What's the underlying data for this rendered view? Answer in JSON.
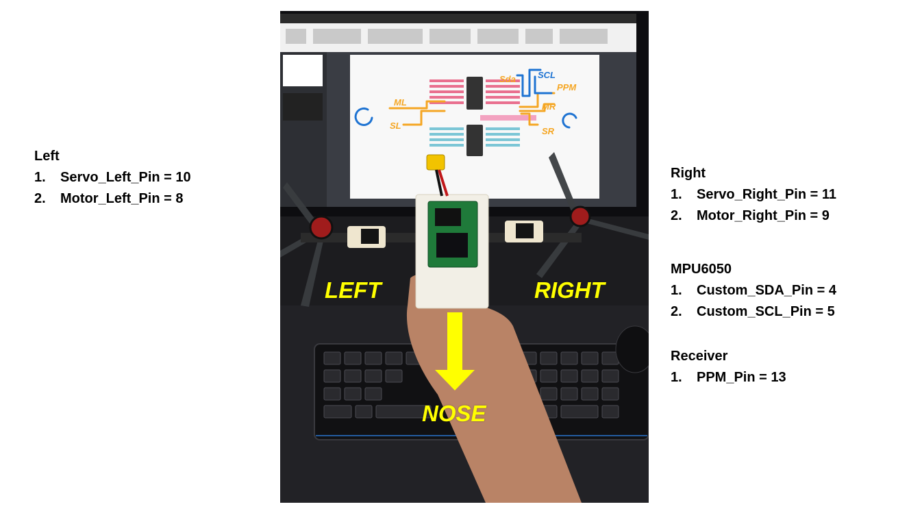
{
  "left": {
    "title": "Left",
    "items": [
      {
        "num": "1.",
        "text": "Servo_Left_Pin = 10"
      },
      {
        "num": "2.",
        "text": "Motor_Left_Pin = 8"
      }
    ]
  },
  "right": {
    "title": "Right",
    "items": [
      {
        "num": "1.",
        "text": "Servo_Right_Pin = 11"
      },
      {
        "num": "2.",
        "text": "Motor_Right_Pin = 9"
      }
    ]
  },
  "mpu": {
    "title": "MPU6050",
    "items": [
      {
        "num": "1.",
        "text": "Custom_SDA_Pin = 4"
      },
      {
        "num": "2.",
        "text": "Custom_SCL_Pin = 5"
      }
    ]
  },
  "receiver": {
    "title": "Receiver",
    "items": [
      {
        "num": "1.",
        "text": "PPM_Pin = 13"
      }
    ]
  },
  "photo": {
    "label_left": "LEFT",
    "label_right": "RIGHT",
    "label_nose": "NOSE",
    "whiteboard": {
      "sda": "Sda",
      "scl": "SCL",
      "ppm": "PPM",
      "ml": "ML",
      "sl": "SL",
      "mr": "MR",
      "sr": "SR"
    }
  },
  "colors": {
    "overlay_text": "#ffff00",
    "arrow": "#ffff00",
    "sketch_orange": "#f5a623",
    "sketch_blue": "#1e73d2"
  }
}
